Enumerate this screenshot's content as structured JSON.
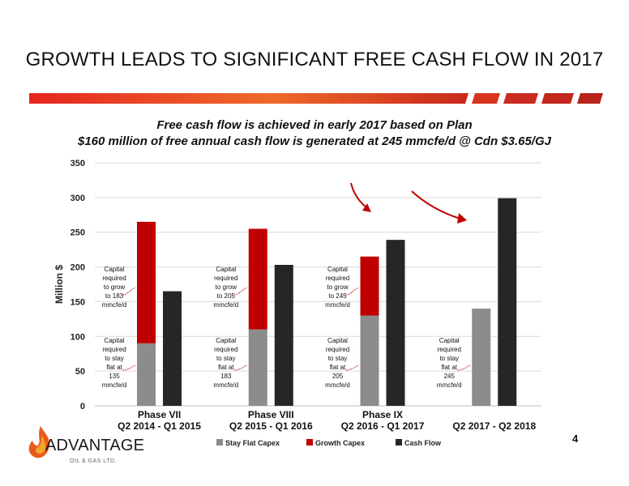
{
  "slide": {
    "title": "GROWTH LEADS TO SIGNIFICANT FREE CASH FLOW IN 2017",
    "page_number": "4",
    "logo_text": "ADVANTAGE",
    "logo_subtext": "OIL & GAS LTD."
  },
  "colors": {
    "stay_flat": "#8c8c8c",
    "growth": "#c00000",
    "cash_flow": "#262626",
    "banner": "#e8451e"
  },
  "chart_data": {
    "type": "bar",
    "title_line1": "Free cash flow is achieved in early 2017 based on Plan",
    "title_line2": "$160 million of free annual cash flow is generated at 245 mmcfe/d @ Cdn $3.65/GJ",
    "ylabel": "Million $",
    "xlabel": "",
    "ylim": [
      0,
      350
    ],
    "yticks": [
      0,
      50,
      100,
      150,
      200,
      250,
      300,
      350
    ],
    "grid": true,
    "legend_position": "bottom",
    "categories": [
      "Q2 2014 - Q1 2015",
      "Q2 2015 - Q1 2016",
      "Q2 2016 - Q1 2017",
      "Q2 2017 - Q2 2018"
    ],
    "phase_labels": [
      "Phase VII",
      "Phase VIII",
      "Phase IX",
      ""
    ],
    "series": [
      {
        "name": "Stay Flat Capex",
        "stack": "capex",
        "values": [
          90,
          110,
          130,
          140
        ]
      },
      {
        "name": "Growth Capex",
        "stack": "capex",
        "values": [
          175,
          145,
          85,
          0
        ]
      },
      {
        "name": "Cash  Flow",
        "stack": "cash",
        "values": [
          165,
          203,
          239,
          299
        ]
      }
    ],
    "annotations": {
      "stay": [
        [
          "Capital",
          "required",
          "to stay",
          "flat at",
          "135",
          "mmcfe/d"
        ],
        [
          "Capital",
          "required",
          "to stay",
          "flat at",
          "183",
          "mmcfe/d"
        ],
        [
          "Capital",
          "required",
          "to stay",
          "flat at",
          "205",
          "mmcfe/d"
        ],
        [
          "Capital",
          "required",
          "to stay",
          "flat at",
          "245",
          "mmcfe/d"
        ]
      ],
      "grow": [
        [
          "Capital",
          "required",
          "to grow",
          "to 183",
          "mmcfe/d"
        ],
        [
          "Capital",
          "required",
          "to grow",
          "to 205",
          "mmcfe/d"
        ],
        [
          "Capital",
          "required",
          "to grow",
          "to 245",
          "mmcfe/d"
        ],
        []
      ]
    }
  }
}
